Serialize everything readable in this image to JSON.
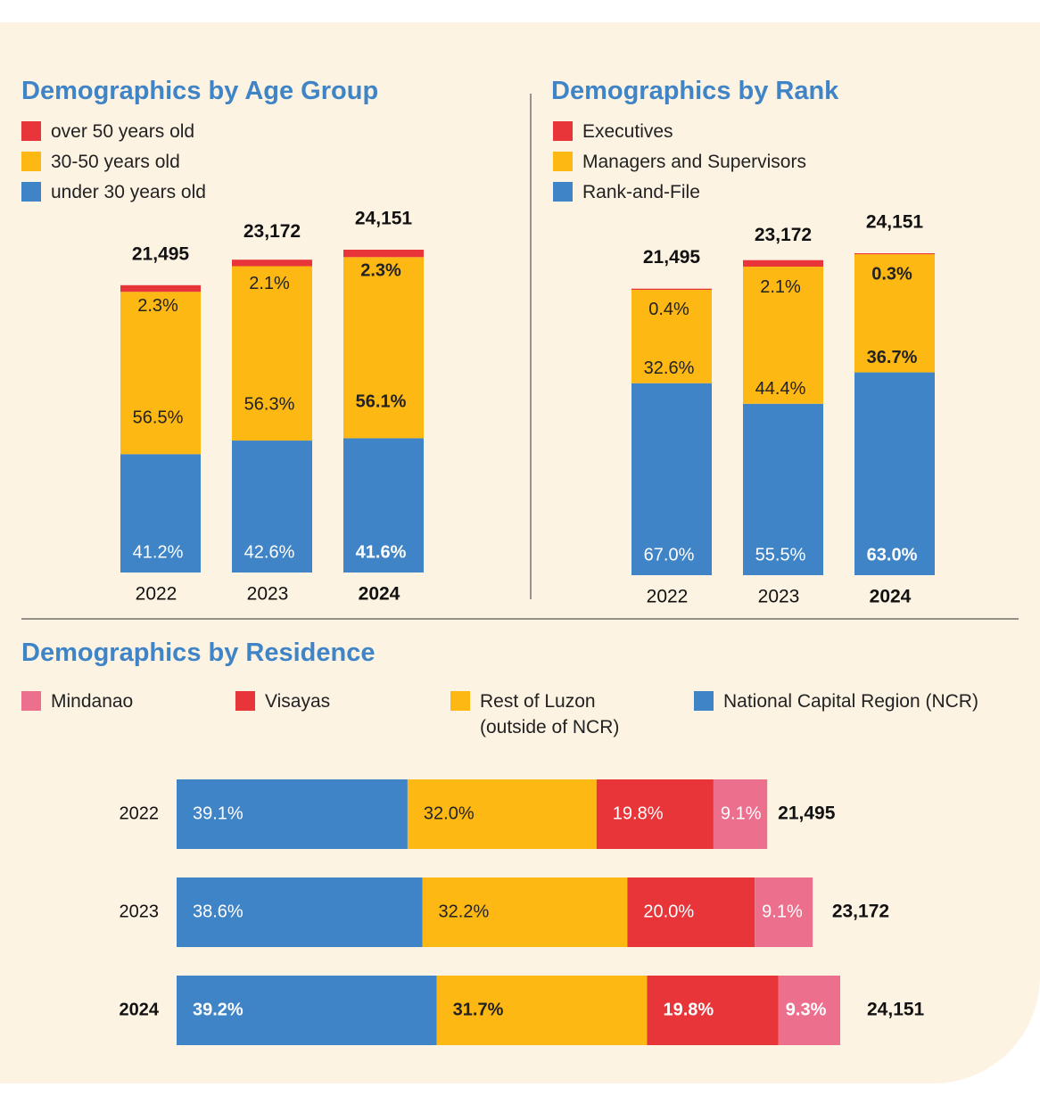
{
  "chart_data": [
    {
      "type": "stacked_bar",
      "title": "Demographics by Age Group",
      "categories": [
        "2022",
        "2023",
        "2024"
      ],
      "series": [
        {
          "name": "under 30 years old",
          "color": "#3f84c6",
          "values": [
            41.2,
            42.6,
            41.6
          ],
          "value_labels": [
            "41.2%",
            "42.6%",
            "41.6%"
          ]
        },
        {
          "name": "30-50 years old",
          "color": "#fdb813",
          "values": [
            56.5,
            56.3,
            56.1
          ],
          "value_labels": [
            "56.5%",
            "56.3%",
            "56.1%"
          ]
        },
        {
          "name": "over 50 years old",
          "color": "#e8353a",
          "values": [
            2.3,
            2.1,
            2.3
          ],
          "value_labels": [
            "2.3%",
            "2.1%",
            "2.3%"
          ]
        }
      ],
      "totals": {
        "values": [
          21495,
          23172,
          24151
        ],
        "value_labels": [
          "21,495",
          "23,172",
          "24,151"
        ]
      }
    },
    {
      "type": "stacked_bar",
      "title": "Demographics by Rank",
      "categories": [
        "2022",
        "2023",
        "2024"
      ],
      "series": [
        {
          "name": "Rank-and-File",
          "color": "#3f84c6",
          "values": [
            67.0,
            55.5,
            63.0
          ],
          "value_labels": [
            "67.0%",
            "55.5%",
            "63.0%"
          ]
        },
        {
          "name": "Managers and Supervisors",
          "color": "#fdb813",
          "values": [
            32.6,
            44.4,
            36.7
          ],
          "value_labels": [
            "32.6%",
            "44.4%",
            "36.7%"
          ]
        },
        {
          "name": "Executives",
          "color": "#e8353a",
          "values": [
            0.4,
            2.1,
            0.3
          ],
          "value_labels": [
            "0.4%",
            "2.1%",
            "0.3%"
          ]
        }
      ],
      "totals": {
        "values": [
          21495,
          23172,
          24151
        ],
        "value_labels": [
          "21,495",
          "23,172",
          "24,151"
        ]
      }
    },
    {
      "type": "stacked_barh",
      "title": "Demographics by Residence",
      "categories": [
        "2022",
        "2023",
        "2024"
      ],
      "series": [
        {
          "name": "National Capital Region (NCR)",
          "color": "#3f84c6",
          "values": [
            39.1,
            38.6,
            39.2
          ],
          "value_labels": [
            "39.1%",
            "38.6%",
            "39.2%"
          ]
        },
        {
          "name": "Rest of Luzon (outside of NCR)",
          "color": "#fdb813",
          "values": [
            32.0,
            32.2,
            31.7
          ],
          "value_labels": [
            "32.0%",
            "32.2%",
            "31.7%"
          ]
        },
        {
          "name": "Visayas",
          "color": "#e8353a",
          "values": [
            19.8,
            20.0,
            19.8
          ],
          "value_labels": [
            "19.8%",
            "20.0%",
            "19.8%"
          ]
        },
        {
          "name": "Mindanao",
          "color": "#ec6f8d",
          "values": [
            9.1,
            9.1,
            9.3
          ],
          "value_labels": [
            "9.1%",
            "9.1%",
            "9.3%"
          ]
        }
      ],
      "totals": {
        "values": [
          21495,
          23172,
          24151
        ],
        "value_labels": [
          "21,495",
          "23,172",
          "24,151"
        ]
      }
    }
  ]
}
